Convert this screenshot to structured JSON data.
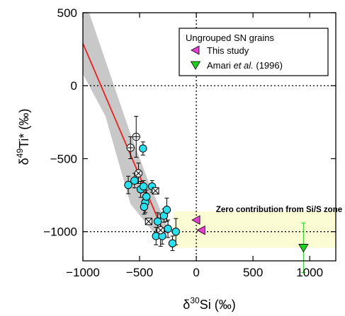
{
  "chart_data": {
    "type": "scatter",
    "xlabel": "δ30Si (‰)",
    "ylabel": "δ49Ti* (‰)",
    "xlim": [
      -1000,
      1230
    ],
    "ylim": [
      -1200,
      500
    ],
    "x_ticks": [
      -1000,
      -500,
      0,
      500,
      1000
    ],
    "y_ticks": [
      500,
      0,
      -500,
      -1000
    ],
    "x_tick_labels": [
      "−1000",
      "−500",
      "0",
      "500",
      "1000"
    ],
    "y_tick_labels": [
      "500",
      "0",
      "−500",
      "−1000"
    ],
    "reference_lines": {
      "x": 0,
      "y_zero": 0,
      "y_low": -1000
    },
    "zone": {
      "label": "Zero contribution from Si/S zone",
      "x_range": [
        -200,
        1230
      ],
      "y_range": [
        -1110,
        -860
      ],
      "color": "#fcfcd4"
    },
    "regression": {
      "color": "#e8231f",
      "band_color": "#c8c8c8",
      "line": [
        [
          -1000,
          290
        ],
        [
          -290,
          -1000
        ]
      ],
      "band_upper": [
        [
          -1000,
          500
        ],
        [
          -945,
          500
        ],
        [
          -580,
          -330
        ],
        [
          -430,
          -640
        ],
        [
          -290,
          -900
        ],
        [
          -230,
          -1000
        ]
      ],
      "band_lower": [
        [
          -230,
          -1000
        ],
        [
          -330,
          -1050
        ],
        [
          -580,
          -810
        ],
        [
          -800,
          -210
        ],
        [
          -1000,
          80
        ]
      ]
    },
    "legend": {
      "title": "Ungrouped SN grains",
      "placement": "top-right",
      "entries": [
        {
          "name": "This study",
          "marker": "triangle-left",
          "color": "#e43fd0"
        },
        {
          "name_pre": "Amari ",
          "name_italic": "et al.",
          "name_post": " (1996)",
          "marker": "triangle-down",
          "color": "#1ed01e"
        }
      ]
    },
    "series": [
      {
        "marker": "circle-filled",
        "color": "#2ae0ee",
        "points": [
          {
            "x": -600,
            "y": -680,
            "yerr": 60
          },
          {
            "x": -545,
            "y": -650,
            "yerr": 50
          },
          {
            "x": -470,
            "y": -430,
            "yerr": 45
          },
          {
            "x": -490,
            "y": -710,
            "yerr": 55
          },
          {
            "x": -465,
            "y": -690,
            "yerr": 40
          },
          {
            "x": -450,
            "y": -800,
            "yerr": 70
          },
          {
            "x": -440,
            "y": -760,
            "yerr": 45
          },
          {
            "x": -460,
            "y": -830,
            "yerr": 50
          },
          {
            "x": -390,
            "y": -690,
            "yerr": 40
          },
          {
            "x": -355,
            "y": -1030,
            "yerr": 60
          },
          {
            "x": -340,
            "y": -930,
            "yerr": 60
          },
          {
            "x": -300,
            "y": -1030,
            "yerr": 55
          },
          {
            "x": -285,
            "y": -890,
            "yerr": 45
          },
          {
            "x": -260,
            "y": -850,
            "yerr": 80
          },
          {
            "x": -250,
            "y": -980,
            "yerr": 60
          },
          {
            "x": -210,
            "y": -1080,
            "yerr": 50
          },
          {
            "x": -180,
            "y": -1000,
            "yerr": 90
          }
        ]
      },
      {
        "marker": "circle-plus",
        "color": "#000000",
        "points": [
          {
            "x": -580,
            "y": -425,
            "yerr": 75
          },
          {
            "x": -530,
            "y": -350,
            "yerr": 140
          }
        ]
      },
      {
        "marker": "circle-cross",
        "color": "#000000",
        "points": [
          {
            "x": -510,
            "y": -600,
            "yerr": 70
          },
          {
            "x": -315,
            "y": -990,
            "yerr": 110
          }
        ]
      },
      {
        "marker": "square-cross",
        "color": "#000000",
        "points": [
          {
            "x": -360,
            "y": -720,
            "yerr": 0
          },
          {
            "x": -420,
            "y": -930,
            "yerr": 0
          }
        ]
      },
      {
        "name": "This study",
        "marker": "triangle-left",
        "color": "#e43fd0",
        "points": [
          {
            "x": 0,
            "y": -920,
            "yerr": 0
          },
          {
            "x": 45,
            "y": -990,
            "yerr": 0
          }
        ]
      },
      {
        "name": "Amari et al. (1996)",
        "marker": "triangle-down",
        "color": "#1ed01e",
        "points": [
          {
            "x": 945,
            "y": -1110,
            "yerr": 170
          }
        ]
      }
    ]
  }
}
